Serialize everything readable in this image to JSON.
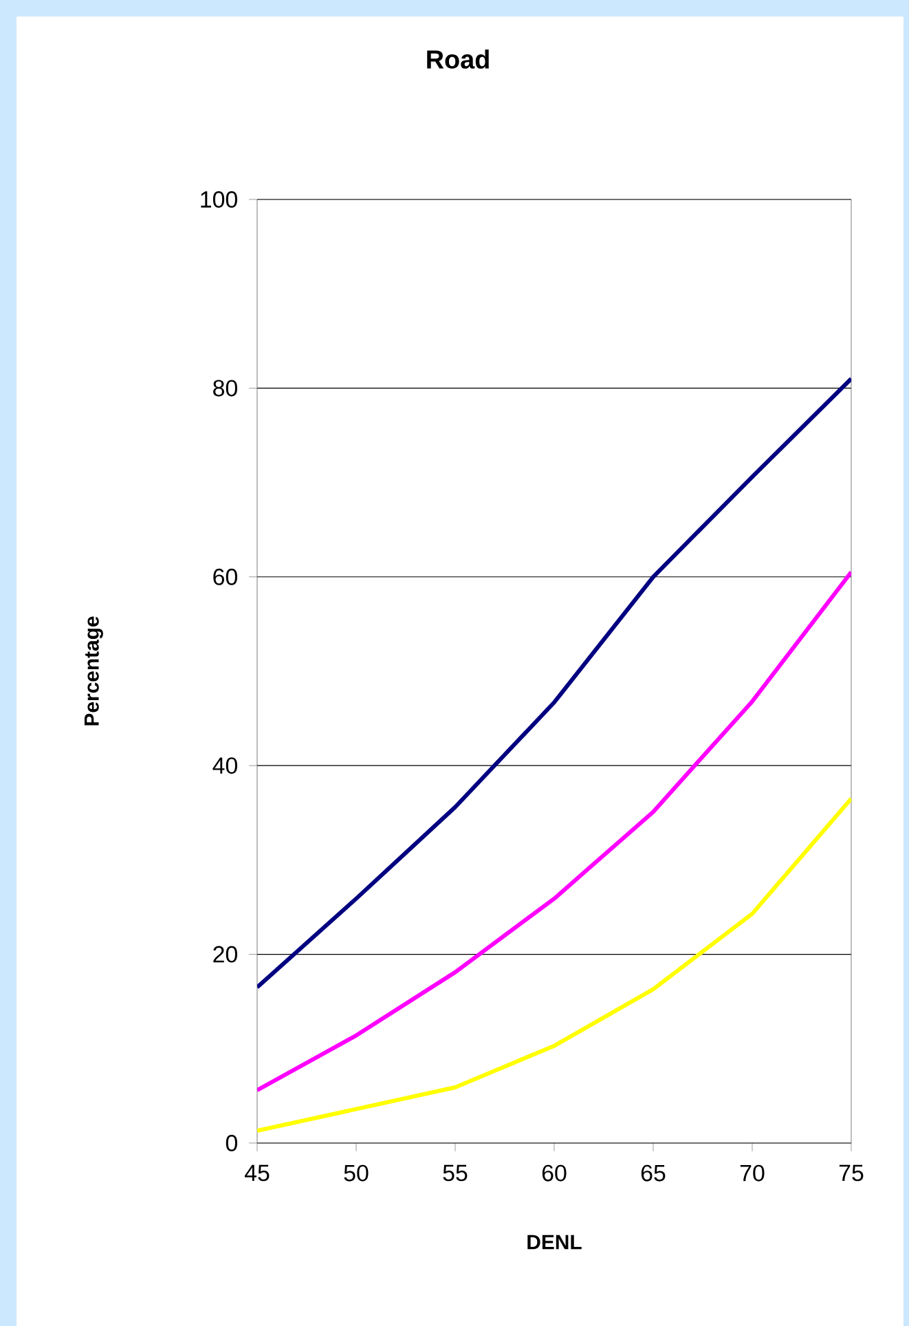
{
  "chart_data": {
    "type": "line",
    "title": "Road",
    "xlabel": "DENL",
    "ylabel": "Percentage",
    "x": [
      45,
      50,
      55,
      60,
      65,
      70,
      75
    ],
    "series": [
      {
        "color": "#000080",
        "values": [
          16.5,
          25.9,
          35.6,
          46.7,
          60.0,
          70.6,
          81.0
        ]
      },
      {
        "color": "#ff00ff",
        "values": [
          5.6,
          11.4,
          18.1,
          25.9,
          35.1,
          46.8,
          60.5
        ]
      },
      {
        "color": "#ffff00",
        "values": [
          1.3,
          3.6,
          5.9,
          10.3,
          16.3,
          24.3,
          36.5
        ]
      }
    ],
    "xlim": [
      45,
      75
    ],
    "ylim": [
      0,
      100
    ],
    "xticks": [
      45,
      50,
      55,
      60,
      65,
      70,
      75
    ],
    "yticks": [
      0,
      20,
      40,
      60,
      80,
      100
    ],
    "grid": "y"
  }
}
